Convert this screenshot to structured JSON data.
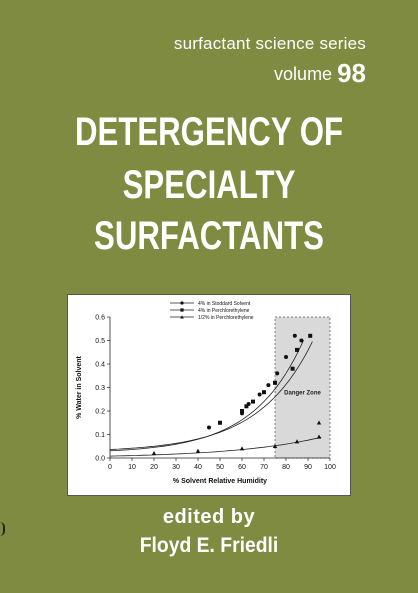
{
  "series": {
    "name": "surfactant science series",
    "volume_label": "volume",
    "volume_number": "98"
  },
  "title": {
    "line1": "DETERGENCY OF",
    "line2": "SPECIALTY",
    "line3": "SURFACTANTS"
  },
  "credits": {
    "edited_by": "edited by",
    "editor": "Floyd E. Friedli"
  },
  "colors": {
    "background": "#7f8b41",
    "text": "#ffffff",
    "danger_zone": "#d9d9d9"
  },
  "chart_data": {
    "type": "scatter",
    "xlabel": "% Solvent Relative Humidity",
    "ylabel": "% Water in Solvent",
    "xlim": [
      0,
      100
    ],
    "ylim": [
      0,
      0.6
    ],
    "x_ticks": [
      "0",
      "10",
      "20",
      "30",
      "40",
      "50",
      "60",
      "70",
      "80",
      "90",
      "100"
    ],
    "y_ticks": [
      "0.0",
      "0.1",
      "0.2",
      "0.3",
      "0.4",
      "0.5",
      "0.6"
    ],
    "annotation": "Danger Zone",
    "danger_zone_x": [
      75,
      100
    ],
    "legend_position": "top-center",
    "series": [
      {
        "name": "4% in Stoddard Solvent",
        "marker": "circle",
        "x": [
          45,
          60,
          63,
          68,
          72,
          76,
          80,
          84,
          87
        ],
        "y": [
          0.13,
          0.19,
          0.23,
          0.27,
          0.31,
          0.36,
          0.43,
          0.52,
          0.5
        ]
      },
      {
        "name": "4% in Perchlorethylene",
        "marker": "square",
        "x": [
          50,
          60,
          62,
          65,
          70,
          75,
          83,
          85,
          91
        ],
        "y": [
          0.15,
          0.2,
          0.22,
          0.24,
          0.28,
          0.32,
          0.38,
          0.46,
          0.52
        ]
      },
      {
        "name": "1/2% in Perchlorethylene",
        "marker": "triangle",
        "x": [
          20,
          40,
          60,
          75,
          85,
          95,
          95
        ],
        "y": [
          0.02,
          0.03,
          0.04,
          0.05,
          0.07,
          0.09,
          0.15
        ]
      }
    ]
  }
}
